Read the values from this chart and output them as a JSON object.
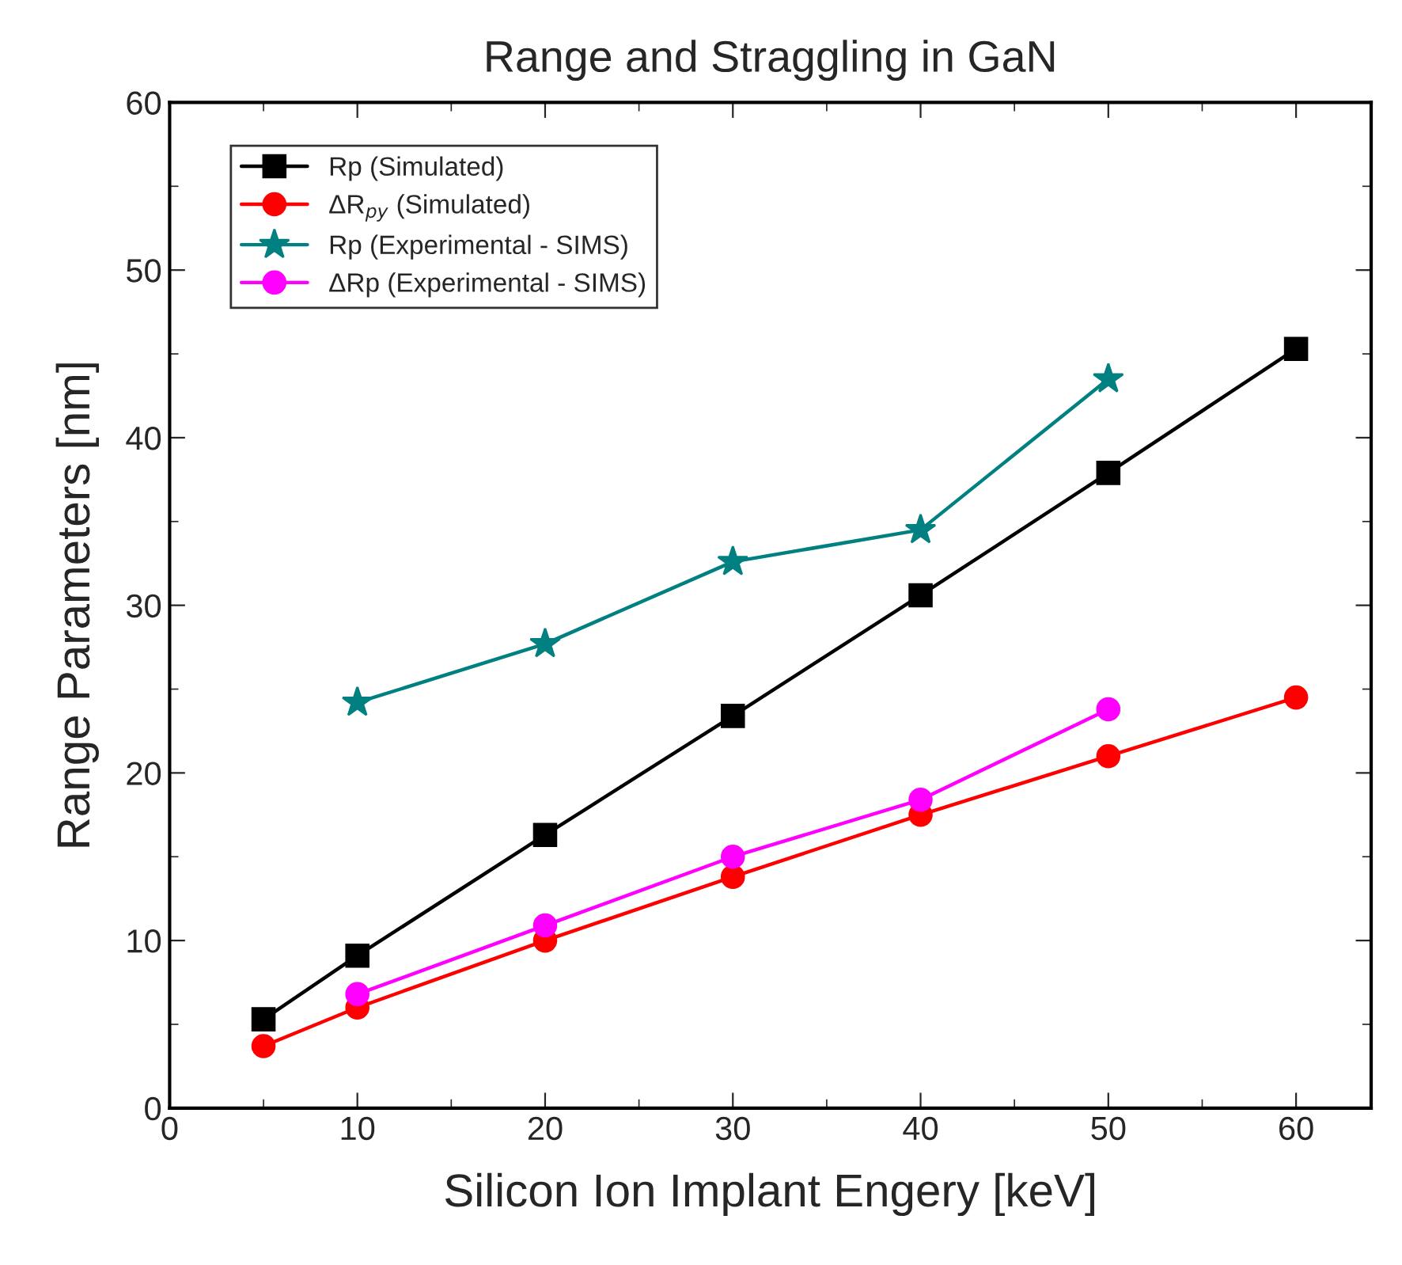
{
  "chart_data": {
    "type": "line",
    "title": "Range and Straggling in GaN",
    "xlabel": "Silicon Ion Implant Engery [keV]",
    "ylabel": "Range Parameters [nm]",
    "xlim": [
      0,
      64
    ],
    "xticks": [
      0,
      10,
      20,
      30,
      40,
      50,
      60
    ],
    "ylim": [
      0,
      60
    ],
    "yticks": [
      0,
      10,
      20,
      30,
      40,
      50,
      60
    ],
    "grid": false,
    "legend": "top left",
    "line_style": "solid",
    "series": [
      {
        "name": "Rp (Simulated)",
        "color": "#000000",
        "marker": "square",
        "x": [
          5,
          10,
          20,
          30,
          40,
          50,
          60
        ],
        "values": [
          5.3,
          9.1,
          16.3,
          23.4,
          30.6,
          37.9,
          45.3
        ]
      },
      {
        "name": "ΔR$_{py}$ (Simulated)",
        "color": "#ff0000",
        "marker": "circle",
        "x": [
          5,
          10,
          20,
          30,
          40,
          50,
          60
        ],
        "values": [
          3.7,
          6.0,
          10.0,
          13.8,
          17.5,
          21.0,
          24.5
        ]
      },
      {
        "name": "Rp (Experimental - SIMS)",
        "color": "#008080",
        "marker": "star",
        "x": [
          10,
          20,
          30,
          40,
          50
        ],
        "values": [
          24.2,
          27.7,
          32.6,
          34.5,
          43.5
        ]
      },
      {
        "name": "ΔRp (Experimental - SIMS)",
        "color": "#ff00ff",
        "marker": "circle",
        "x": [
          10,
          20,
          30,
          40,
          50
        ],
        "values": [
          6.8,
          10.9,
          15.0,
          18.4,
          23.8
        ]
      }
    ]
  }
}
